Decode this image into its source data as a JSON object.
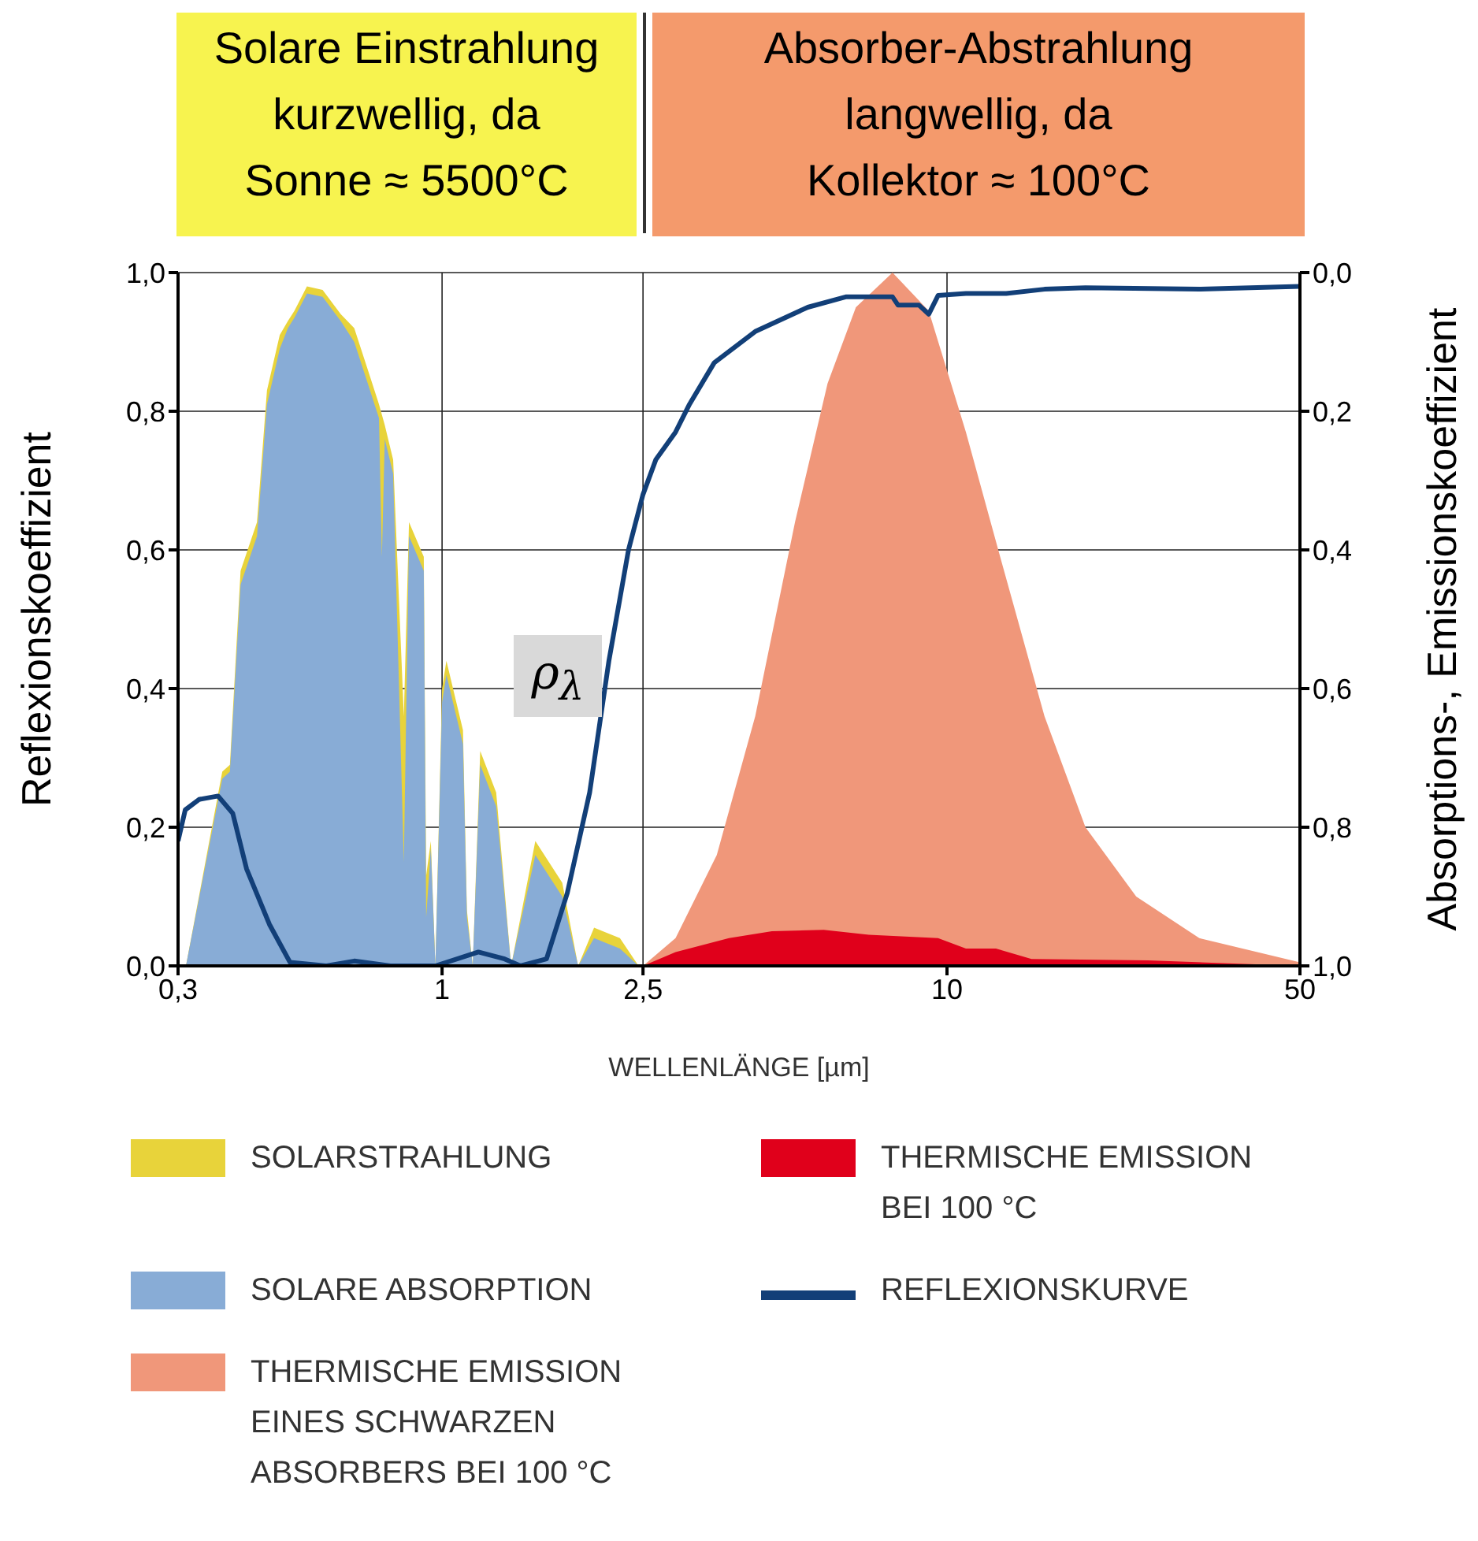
{
  "chart_data": {
    "type": "area",
    "xlabel": "WELLENLÄNGE [µm]",
    "ylabel": "Reflexionskoeffizient",
    "y2label": "Absorptions-, Emissionskoeffizient",
    "annotations": [
      "Solare Einstrahlung\nkurzwellig, da\nSonne ≈ 5500°C",
      "Absorber-Abstrahlung\nlangwellig, da\nKollektor ≈ 100°C",
      "ρ$_{λ}$"
    ],
    "log": "x",
    "xlim": [
      0.3,
      50
    ],
    "xticks": [
      {
        "value": 0.3,
        "label": "0,3"
      },
      1,
      {
        "value": 2.5,
        "label": "2,5"
      },
      10,
      50
    ],
    "ylim": [
      0,
      1
    ],
    "yticks": [
      {
        "value": 0,
        "label": "0,0"
      },
      {
        "value": 0.2,
        "label": "0,2"
      },
      {
        "value": 0.4,
        "label": "0,4"
      },
      {
        "value": 0.6,
        "label": "0,6"
      },
      {
        "value": 0.8,
        "label": "0,8"
      },
      {
        "value": 1,
        "label": "1,0"
      }
    ],
    "y2lim": [
      1,
      0
    ],
    "y2ticks": [
      {
        "value": 0,
        "label": "0,0"
      },
      {
        "value": 0.2,
        "label": "0,2"
      },
      {
        "value": 0.4,
        "label": "0,4"
      },
      {
        "value": 0.6,
        "label": "0,6"
      },
      {
        "value": 0.8,
        "label": "0,8"
      },
      {
        "value": 1,
        "label": "1,0"
      }
    ],
    "grid": true,
    "legend": "bottom",
    "series": [
      {
        "name": "SOLARSTRAHLUNG",
        "color": "#e8d33a",
        "x": [
          0.311,
          0.367,
          0.38,
          0.399,
          0.43,
          0.45,
          0.477,
          0.495,
          0.51,
          0.54,
          0.58,
          0.63,
          0.67,
          0.72,
          0.75,
          0.77,
          0.8,
          0.84,
          0.86,
          0.92,
          0.93,
          0.95,
          0.97,
          1.0,
          1.02,
          1.1,
          1.12,
          1.15,
          1.19,
          1.28,
          1.37,
          1.53,
          1.73,
          1.86,
          2.0,
          2.25,
          2.45
        ],
        "values": [
          0,
          0.28,
          0.29,
          0.57,
          0.64,
          0.83,
          0.91,
          0.93,
          0.945,
          0.98,
          0.975,
          0.94,
          0.92,
          0.85,
          0.81,
          0.78,
          0.73,
          0.36,
          0.64,
          0.59,
          0.13,
          0.18,
          0,
          0.4,
          0.44,
          0.34,
          0.08,
          0,
          0.31,
          0.25,
          0,
          0.18,
          0.12,
          0,
          0.055,
          0.04,
          0
        ]
      },
      {
        "name": "SOLARE ABSORPTION",
        "color": "#88acd6",
        "x": [
          0.311,
          0.367,
          0.38,
          0.399,
          0.43,
          0.45,
          0.477,
          0.495,
          0.51,
          0.54,
          0.58,
          0.63,
          0.67,
          0.72,
          0.75,
          0.76,
          0.77,
          0.8,
          0.84,
          0.86,
          0.92,
          0.93,
          0.95,
          0.97,
          1.0,
          1.02,
          1.1,
          1.12,
          1.15,
          1.19,
          1.28,
          1.37,
          1.53,
          1.73,
          1.86,
          2.0,
          2.25,
          2.45
        ],
        "values": [
          0,
          0.27,
          0.28,
          0.55,
          0.62,
          0.81,
          0.89,
          0.92,
          0.935,
          0.97,
          0.965,
          0.93,
          0.9,
          0.83,
          0.79,
          0.59,
          0.76,
          0.71,
          0.15,
          0.62,
          0.57,
          0.07,
          0.17,
          0,
          0.38,
          0.42,
          0.32,
          0.07,
          0,
          0.29,
          0.23,
          0,
          0.16,
          0.1,
          0,
          0.04,
          0.025,
          0
        ]
      },
      {
        "name": "THERMISCHE EMISSION\nEINES SCHWARZEN\nABSORBERS BEI 100 °C",
        "color": "#f0977a",
        "x": [
          2.5,
          2.9,
          3.5,
          4.17,
          5.0,
          5.8,
          6.6,
          7.8,
          9.2,
          10.9,
          12.8,
          15.6,
          18.8,
          23.7,
          31.6,
          50
        ],
        "values": [
          0,
          0.04,
          0.16,
          0.36,
          0.64,
          0.84,
          0.95,
          1.0,
          0.945,
          0.77,
          0.585,
          0.36,
          0.2,
          0.1,
          0.04,
          0.005
        ]
      },
      {
        "name": "THERMISCHE EMISSION\nBEI 100 °C",
        "color": "#e0001b",
        "x": [
          2.5,
          2.9,
          3.7,
          4.5,
          5.7,
          7.0,
          9.6,
          10.9,
          12.5,
          14.7,
          25,
          50
        ],
        "values": [
          0,
          0.02,
          0.04,
          0.05,
          0.052,
          0.045,
          0.04,
          0.025,
          0.025,
          0.01,
          0.008,
          0
        ]
      },
      {
        "name": "REFLEXIONSKURVE",
        "color": "#123f78",
        "type": "line",
        "x": [
          0.3,
          0.31,
          0.33,
          0.36,
          0.385,
          0.41,
          0.455,
          0.5,
          0.59,
          0.67,
          0.79,
          0.97,
          1.18,
          1.33,
          1.43,
          1.61,
          1.77,
          1.96,
          2.14,
          2.34,
          2.5,
          2.65,
          2.9,
          3.09,
          3.46,
          4.17,
          5.3,
          6.3,
          7.8,
          8.0,
          8.8,
          9.2,
          9.6,
          10.9,
          13.1,
          15.6,
          18.8,
          31.6,
          50
        ],
        "values": [
          0.18,
          0.225,
          0.24,
          0.245,
          0.22,
          0.14,
          0.06,
          0.005,
          0,
          0.007,
          0,
          0,
          0.02,
          0.01,
          0,
          0.01,
          0.105,
          0.25,
          0.44,
          0.6,
          0.68,
          0.73,
          0.77,
          0.81,
          0.87,
          0.915,
          0.95,
          0.965,
          0.965,
          0.953,
          0.953,
          0.94,
          0.967,
          0.97,
          0.97,
          0.976,
          0.978,
          0.976,
          0.98
        ]
      }
    ]
  }
}
